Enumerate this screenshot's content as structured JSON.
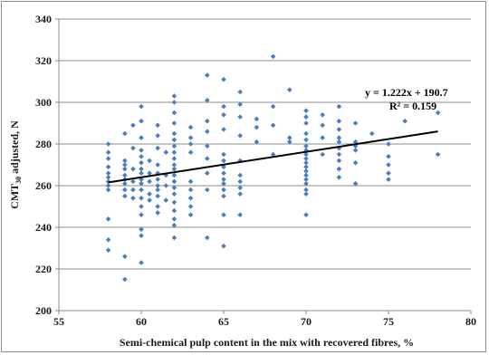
{
  "chart_data": {
    "type": "scatter",
    "xlabel": "Semi-chemical pulp content in the mix with recovered fibres, %",
    "ylabel_main": "CMT",
    "ylabel_sub": "30",
    "ylabel_rest": " adjusted, N",
    "xlim": [
      55,
      80
    ],
    "ylim": [
      200,
      340
    ],
    "x_ticks": [
      "55",
      "60",
      "65",
      "70",
      "75",
      "80"
    ],
    "y_ticks": [
      "200",
      "220",
      "240",
      "260",
      "280",
      "300",
      "320",
      "340"
    ],
    "grid": "horizontal",
    "marker_color": "#4a7ebb",
    "trendline_color": "#000000",
    "trendline": {
      "slope": 1.222,
      "intercept": 190.7,
      "x_range": [
        58,
        78
      ]
    },
    "annotations": {
      "equation": "y = 1.222x + 190.7",
      "r_squared": "R² = 0.159"
    },
    "points": [
      [
        58,
        280
      ],
      [
        58,
        276
      ],
      [
        58,
        273
      ],
      [
        58,
        269
      ],
      [
        58,
        266
      ],
      [
        58,
        264
      ],
      [
        58,
        262
      ],
      [
        58,
        260
      ],
      [
        58,
        258
      ],
      [
        58,
        244
      ],
      [
        58,
        234
      ],
      [
        58,
        229
      ],
      [
        59,
        285
      ],
      [
        59,
        272
      ],
      [
        59,
        270
      ],
      [
        59,
        268
      ],
      [
        59,
        265
      ],
      [
        59,
        263
      ],
      [
        59,
        261
      ],
      [
        59,
        258
      ],
      [
        59,
        255
      ],
      [
        59,
        226
      ],
      [
        59,
        215
      ],
      [
        59.5,
        289
      ],
      [
        59.5,
        278
      ],
      [
        59.5,
        268
      ],
      [
        59.5,
        262
      ],
      [
        59.5,
        258
      ],
      [
        59.5,
        254
      ],
      [
        60,
        298
      ],
      [
        60,
        291
      ],
      [
        60,
        283
      ],
      [
        60,
        277
      ],
      [
        60,
        274
      ],
      [
        60,
        271
      ],
      [
        60,
        268
      ],
      [
        60,
        266
      ],
      [
        60,
        263
      ],
      [
        60,
        261
      ],
      [
        60,
        258
      ],
      [
        60,
        254
      ],
      [
        60,
        250
      ],
      [
        60,
        246
      ],
      [
        60,
        239
      ],
      [
        60,
        236
      ],
      [
        60,
        223
      ],
      [
        60.5,
        272
      ],
      [
        60.5,
        266
      ],
      [
        60.5,
        262
      ],
      [
        60.5,
        256
      ],
      [
        60.5,
        253
      ],
      [
        61,
        289
      ],
      [
        61,
        284
      ],
      [
        61,
        278
      ],
      [
        61,
        270
      ],
      [
        61,
        266
      ],
      [
        61,
        263
      ],
      [
        61,
        260
      ],
      [
        61,
        258
      ],
      [
        61,
        255
      ],
      [
        61,
        250
      ],
      [
        61,
        247
      ],
      [
        61.5,
        276
      ],
      [
        61.5,
        265
      ],
      [
        61.5,
        260
      ],
      [
        61.5,
        253
      ],
      [
        62,
        303
      ],
      [
        62,
        300
      ],
      [
        62,
        295
      ],
      [
        62,
        290
      ],
      [
        62,
        285
      ],
      [
        62,
        282
      ],
      [
        62,
        279
      ],
      [
        62,
        276
      ],
      [
        62,
        273
      ],
      [
        62,
        270
      ],
      [
        62,
        268
      ],
      [
        62,
        265
      ],
      [
        62,
        262
      ],
      [
        62,
        259
      ],
      [
        62,
        256
      ],
      [
        62,
        252
      ],
      [
        62,
        248
      ],
      [
        62,
        244
      ],
      [
        62,
        241
      ],
      [
        62,
        235
      ],
      [
        63,
        288
      ],
      [
        63,
        283
      ],
      [
        63,
        280
      ],
      [
        63,
        276
      ],
      [
        63,
        262
      ],
      [
        63,
        258
      ],
      [
        63,
        254
      ],
      [
        63,
        250
      ],
      [
        63,
        246
      ],
      [
        64,
        313
      ],
      [
        64,
        301
      ],
      [
        64,
        291
      ],
      [
        64,
        286
      ],
      [
        64,
        279
      ],
      [
        64,
        273
      ],
      [
        64,
        266
      ],
      [
        64,
        258
      ],
      [
        64,
        235
      ],
      [
        65,
        311
      ],
      [
        65,
        298
      ],
      [
        65,
        294
      ],
      [
        65,
        287
      ],
      [
        65,
        275
      ],
      [
        65,
        272
      ],
      [
        65,
        269
      ],
      [
        65,
        266
      ],
      [
        65,
        263
      ],
      [
        65,
        261
      ],
      [
        65,
        258
      ],
      [
        65,
        255
      ],
      [
        65,
        246
      ],
      [
        65,
        231
      ],
      [
        66,
        305
      ],
      [
        66,
        299
      ],
      [
        66,
        293
      ],
      [
        66,
        284
      ],
      [
        66,
        272
      ],
      [
        66,
        265
      ],
      [
        66,
        262
      ],
      [
        66,
        259
      ],
      [
        66,
        256
      ],
      [
        66,
        246
      ],
      [
        67,
        292
      ],
      [
        67,
        288
      ],
      [
        67,
        281
      ],
      [
        68,
        322
      ],
      [
        68,
        298
      ],
      [
        68,
        289
      ],
      [
        68,
        275
      ],
      [
        69,
        306
      ],
      [
        69,
        283
      ],
      [
        69,
        281
      ],
      [
        70,
        296
      ],
      [
        70,
        293
      ],
      [
        70,
        290
      ],
      [
        70,
        285
      ],
      [
        70,
        282
      ],
      [
        70,
        279
      ],
      [
        70,
        277
      ],
      [
        70,
        275
      ],
      [
        70,
        273
      ],
      [
        70,
        271
      ],
      [
        70,
        269
      ],
      [
        70,
        267
      ],
      [
        70,
        265
      ],
      [
        70,
        263
      ],
      [
        70,
        261
      ],
      [
        70,
        258
      ],
      [
        70,
        256
      ],
      [
        70,
        246
      ],
      [
        71,
        294
      ],
      [
        71,
        289
      ],
      [
        71,
        283
      ],
      [
        71,
        275
      ],
      [
        72,
        298
      ],
      [
        72,
        291
      ],
      [
        72,
        287
      ],
      [
        72,
        283
      ],
      [
        72,
        281
      ],
      [
        72,
        278
      ],
      [
        72,
        275
      ],
      [
        72,
        272
      ],
      [
        72,
        268
      ],
      [
        72,
        264
      ],
      [
        73,
        290
      ],
      [
        73,
        281
      ],
      [
        73,
        279
      ],
      [
        73,
        277
      ],
      [
        73,
        271
      ],
      [
        73,
        261
      ],
      [
        74,
        285
      ],
      [
        75,
        280
      ],
      [
        75,
        274
      ],
      [
        75,
        270
      ],
      [
        75,
        266
      ],
      [
        75,
        263
      ],
      [
        76,
        291
      ],
      [
        78,
        295
      ],
      [
        78,
        275
      ]
    ]
  }
}
